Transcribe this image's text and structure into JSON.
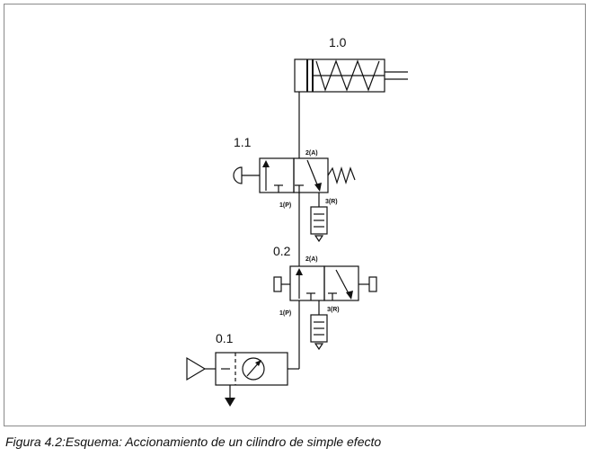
{
  "labels": {
    "cylinder": "1.0",
    "valve_1_1": "1.1",
    "valve_0_2": "0.2",
    "unit_0_1": "0.1",
    "v11_port_out": "2(A)",
    "v11_port_in": "1(P)",
    "v11_port_exhaust": "3(R)",
    "v02_port_out": "2(A)",
    "v02_port_in": "1(P)",
    "v02_port_exhaust": "3(R)"
  },
  "caption": "Figura 4.2:Esquema: Accionamiento de un cilindro de simple efecto",
  "colors": {
    "line": "#111111",
    "frame": "#8a8a8a",
    "background": "#ffffff"
  }
}
